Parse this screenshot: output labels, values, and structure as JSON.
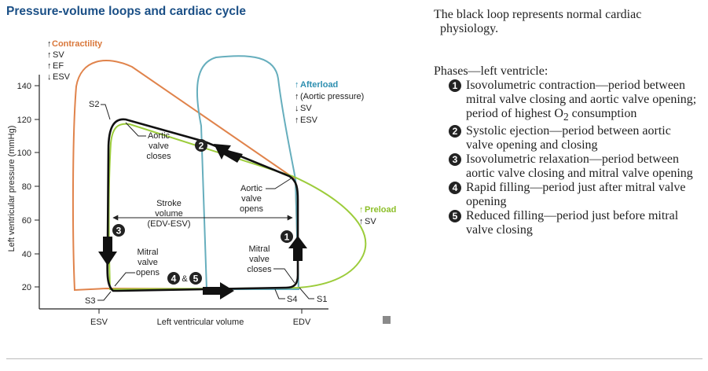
{
  "title": "Pressure-volume loops and cardiac cycle",
  "axes": {
    "y_label": "Left ventricular pressure (mmHg)",
    "y_ticks": [
      "140",
      "120",
      "100",
      "80",
      "60",
      "40",
      "20"
    ],
    "x_label": "Left ventricular volume",
    "x_ticks": {
      "esv": "ESV",
      "edv": "EDV"
    }
  },
  "colors": {
    "normal": "#111111",
    "contractility": "#e0834b",
    "afterload": "#66aebd",
    "preload": "#9ccc3b",
    "label_orange": "#d9773a",
    "label_teal": "#2e8fb0",
    "label_green": "#8dbf2a"
  },
  "legend": {
    "contractility": {
      "title": "Contractility",
      "lines": [
        "SV",
        "EF",
        "ESV"
      ],
      "arrows": [
        "up",
        "up",
        "down"
      ]
    },
    "afterload": {
      "title": "Afterload",
      "lines": [
        "(Aortic pressure)",
        "SV",
        "ESV"
      ],
      "arrows": [
        "up",
        "down",
        "up"
      ]
    },
    "preload": {
      "title": "Preload",
      "lines": [
        "SV"
      ],
      "arrows": [
        "up"
      ]
    }
  },
  "annotations": {
    "s2": "S2",
    "s3": "S3",
    "s4": "S4",
    "s1": "S1",
    "aortic_closes": [
      "Aortic",
      "valve",
      "closes"
    ],
    "aortic_opens": [
      "Aortic",
      "valve",
      "opens"
    ],
    "mitral_opens": [
      "Mitral",
      "valve",
      "opens"
    ],
    "mitral_closes": [
      "Mitral",
      "valve",
      "closes"
    ],
    "stroke_volume": [
      "Stroke",
      "volume",
      "(EDV-ESV)"
    ],
    "amp": "&"
  },
  "phase_markers": [
    "1",
    "2",
    "3",
    "4",
    "5"
  ],
  "right_panel": {
    "intro_line1": "The black loop represents normal cardiac",
    "intro_line2": "physiology.",
    "phases_heading": "Phases—left ventricle:",
    "phases": [
      {
        "num": "1",
        "text_a": "Isovolumetric contraction—period between mitral valve closing and aortic valve opening; period of highest O",
        "sub": "2",
        "text_b": " consumption"
      },
      {
        "num": "2",
        "text_a": "Systolic ejection—period between aortic valve opening and closing"
      },
      {
        "num": "3",
        "text_a": "Isovolumetric relaxation—period between aortic valve closing and mitral valve opening"
      },
      {
        "num": "4",
        "text_a": "Rapid filling—period just after mitral valve opening"
      },
      {
        "num": "5",
        "text_a": "Reduced filling—period just before mitral valve closing"
      }
    ]
  }
}
